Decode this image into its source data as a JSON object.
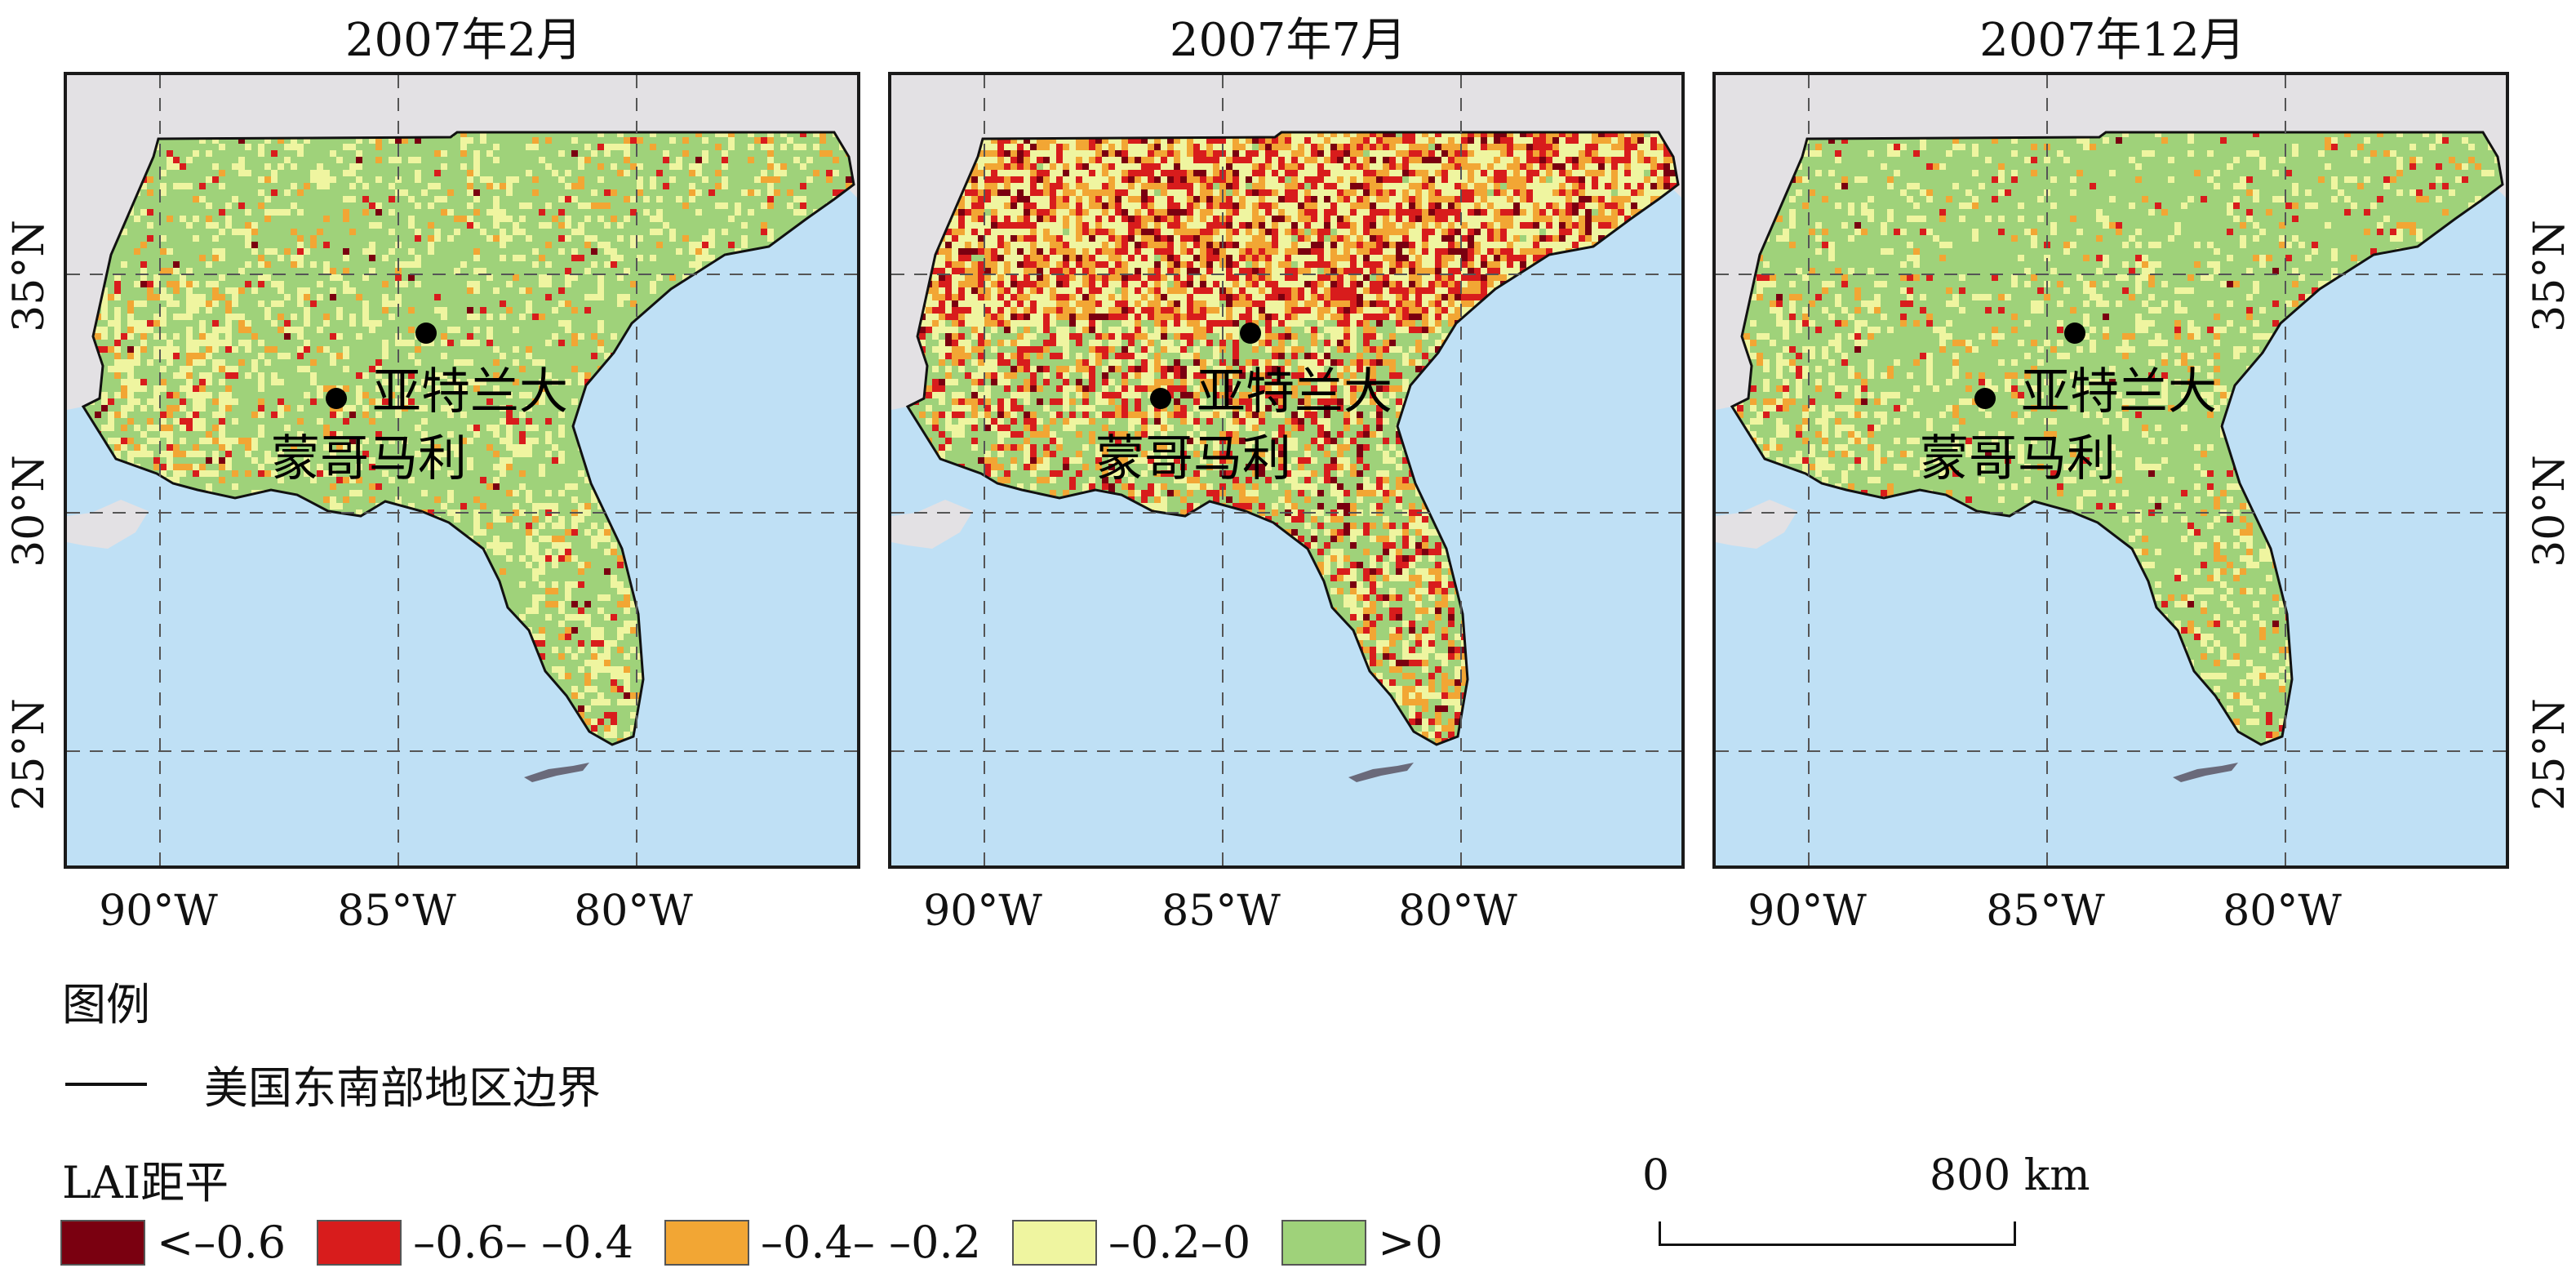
{
  "panels": [
    {
      "title": "2007年2月",
      "city1": "亚特兰大",
      "city2": "蒙哥马利"
    },
    {
      "title": "2007年7月",
      "city1": "亚特兰大",
      "city2": "蒙哥马利"
    },
    {
      "title": "2007年12月",
      "city1": "亚特兰大",
      "city2": "蒙哥马利"
    }
  ],
  "lon_labels": [
    "90°W",
    "85°W",
    "80°W"
  ],
  "lat_labels": [
    "35°N",
    "30°N",
    "25°N"
  ],
  "legend": {
    "title": "图例",
    "boundary_label": "美国东南部地区边界",
    "lai_title": "LAI距平",
    "classes": [
      {
        "label": "<–0.6",
        "color": "#7a0010"
      },
      {
        "label": "–0.6– –0.4",
        "color": "#d81c1c"
      },
      {
        "label": "–0.4– –0.2",
        "color": "#f2a634"
      },
      {
        "label": "–0.2–0",
        "color": "#eff5a0"
      },
      {
        "label": ">0",
        "color": "#9fd27a"
      }
    ]
  },
  "scalebar": {
    "start": "0",
    "end": "800 km"
  },
  "colors": {
    "ocean": "#bfe0f5",
    "land_outside": "#e3e1e4",
    "positive": "#9fd27a"
  }
}
